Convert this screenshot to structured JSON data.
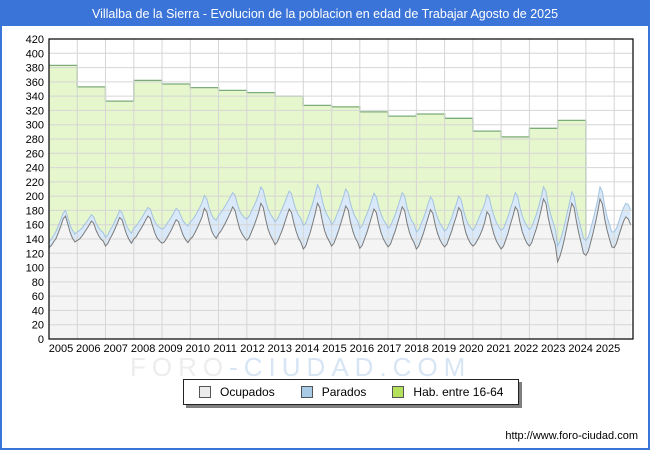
{
  "window": {
    "title": "Villalba de la Sierra - Evolucion de la poblacion en edad de Trabajar Agosto de 2025",
    "frame_color": "#3b74d8",
    "url_text": "http://www.foro-ciudad.com"
  },
  "watermark": {
    "left": "FORO",
    "right": "-CIUDAD.COM",
    "left_color": "#ededed",
    "right_color": "#d7e5f4"
  },
  "legend": {
    "items": [
      {
        "label": "Ocupados",
        "color": "#ececec"
      },
      {
        "label": "Parados",
        "color": "#a8cce8"
      },
      {
        "label": "Hab. entre 16-64",
        "color": "#b4e05c"
      }
    ]
  },
  "chart_data": {
    "type": "area",
    "title": "Villalba de la Sierra - Evolucion de la poblacion en edad de Trabajar Agosto de 2025",
    "x_unit": "month",
    "x_start": "2005-01",
    "x_end": "2025-08",
    "x_tick_years": [
      2005,
      2006,
      2007,
      2008,
      2009,
      2010,
      2011,
      2012,
      2013,
      2014,
      2015,
      2016,
      2017,
      2018,
      2019,
      2020,
      2021,
      2022,
      2023,
      2024,
      2025
    ],
    "ylim": [
      0,
      420
    ],
    "ytick_step": 20,
    "grid": true,
    "legend_position": "bottom",
    "series": [
      {
        "name": "Ocupados",
        "color_fill": "#f4f4f4",
        "color_line": "#7a7a7a",
        "values": [
          128,
          131,
          136,
          141,
          149,
          158,
          168,
          172,
          161,
          149,
          141,
          136,
          138,
          140,
          144,
          149,
          154,
          159,
          165,
          162,
          152,
          145,
          140,
          137,
          130,
          134,
          141,
          147,
          154,
          162,
          170,
          167,
          156,
          146,
          139,
          134,
          140,
          143,
          149,
          154,
          160,
          166,
          172,
          169,
          158,
          148,
          141,
          137,
          134,
          136,
          141,
          147,
          153,
          160,
          167,
          164,
          154,
          145,
          139,
          135,
          140,
          143,
          149,
          156,
          163,
          171,
          183,
          178,
          164,
          152,
          145,
          141,
          147,
          151,
          157,
          163,
          170,
          177,
          185,
          180,
          166,
          154,
          147,
          142,
          138,
          142,
          150,
          158,
          167,
          177,
          190,
          184,
          168,
          154,
          145,
          139,
          132,
          136,
          144,
          152,
          162,
          172,
          182,
          177,
          162,
          150,
          141,
          135,
          126,
          130,
          140,
          150,
          162,
          175,
          190,
          184,
          166,
          152,
          143,
          137,
          130,
          134,
          143,
          152,
          163,
          174,
          186,
          181,
          164,
          151,
          142,
          136,
          127,
          131,
          140,
          149,
          160,
          171,
          182,
          177,
          161,
          149,
          140,
          134,
          129,
          133,
          142,
          151,
          162,
          173,
          185,
          180,
          163,
          150,
          141,
          135,
          126,
          130,
          139,
          148,
          159,
          170,
          181,
          176,
          160,
          148,
          139,
          133,
          129,
          133,
          142,
          151,
          162,
          172,
          184,
          179,
          162,
          149,
          140,
          134,
          130,
          133,
          139,
          145,
          153,
          163,
          178,
          173,
          158,
          146,
          137,
          131,
          126,
          130,
          139,
          149,
          161,
          172,
          185,
          180,
          163,
          150,
          141,
          134,
          130,
          135,
          145,
          155,
          167,
          181,
          196,
          190,
          170,
          155,
          143,
          132,
          108,
          116,
          128,
          142,
          158,
          173,
          190,
          184,
          164,
          148,
          134,
          120,
          117,
          123,
          135,
          148,
          162,
          178,
          196,
          189,
          168,
          152,
          140,
          129,
          128,
          134,
          145,
          155,
          165,
          171,
          168,
          160
        ]
      },
      {
        "name": "Parados",
        "stacked_on": "Ocupados",
        "color_fill": "#d9e9f9",
        "color_line": "#a3c3e0",
        "values": [
          8,
          9,
          9,
          10,
          10,
          9,
          8,
          8,
          9,
          10,
          11,
          11,
          12,
          12,
          11,
          11,
          10,
          10,
          9,
          9,
          10,
          11,
          12,
          12,
          12,
          12,
          12,
          11,
          11,
          10,
          10,
          10,
          11,
          12,
          13,
          14,
          15,
          15,
          14,
          14,
          13,
          13,
          12,
          13,
          14,
          16,
          18,
          19,
          20,
          20,
          20,
          19,
          18,
          17,
          16,
          16,
          18,
          20,
          22,
          23,
          24,
          24,
          23,
          22,
          21,
          20,
          18,
          18,
          20,
          22,
          24,
          25,
          26,
          26,
          25,
          24,
          23,
          22,
          20,
          21,
          23,
          25,
          27,
          28,
          30,
          30,
          29,
          28,
          26,
          25,
          23,
          24,
          26,
          28,
          30,
          31,
          32,
          32,
          31,
          30,
          28,
          27,
          25,
          26,
          28,
          30,
          32,
          33,
          33,
          32,
          31,
          30,
          28,
          27,
          26,
          26,
          28,
          30,
          31,
          32,
          30,
          30,
          29,
          28,
          26,
          25,
          24,
          24,
          26,
          28,
          29,
          30,
          28,
          28,
          27,
          26,
          24,
          23,
          22,
          22,
          24,
          26,
          27,
          28,
          26,
          25,
          24,
          23,
          22,
          21,
          20,
          20,
          22,
          24,
          25,
          26,
          24,
          23,
          22,
          21,
          20,
          19,
          18,
          18,
          20,
          22,
          23,
          24,
          22,
          21,
          20,
          19,
          18,
          17,
          16,
          16,
          18,
          20,
          21,
          22,
          22,
          24,
          26,
          28,
          28,
          26,
          24,
          24,
          25,
          26,
          26,
          26,
          26,
          25,
          24,
          23,
          22,
          21,
          20,
          20,
          21,
          22,
          23,
          24,
          23,
          22,
          21,
          20,
          19,
          18,
          17,
          17,
          18,
          20,
          21,
          22,
          22,
          21,
          20,
          19,
          18,
          17,
          16,
          16,
          17,
          19,
          20,
          21,
          21,
          20,
          19,
          19,
          18,
          17,
          17,
          17,
          18,
          19,
          20,
          21,
          22,
          21,
          20,
          20,
          19,
          19,
          20,
          21
        ]
      }
    ],
    "hab_16_64": {
      "name": "Hab. entre 16-64",
      "note_step_series_yearly": "value constant within each calendar year; series ends Jan 2024",
      "color_fill": "#e6f6cd",
      "color_line": "#7cab7c",
      "years": [
        2005,
        2006,
        2007,
        2008,
        2009,
        2010,
        2011,
        2012,
        2013,
        2014,
        2015,
        2016,
        2017,
        2018,
        2019,
        2020,
        2021,
        2022,
        2023
      ],
      "values": [
        383,
        353,
        333,
        362,
        357,
        352,
        348,
        345,
        340,
        327,
        325,
        318,
        312,
        315,
        309,
        291,
        283,
        295,
        306
      ]
    },
    "grid_color": "#d6d6d6",
    "plot_border_color": "#000000"
  }
}
